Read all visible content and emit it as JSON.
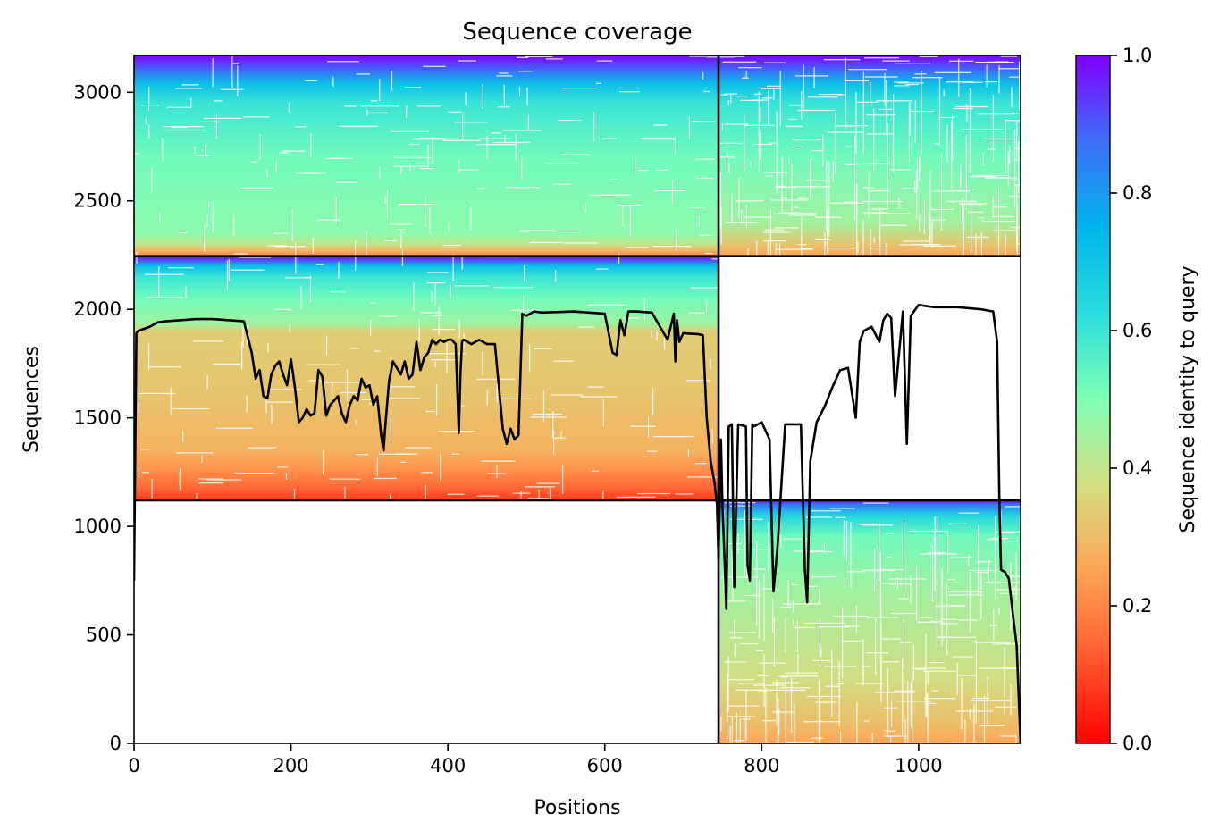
{
  "chart_data": {
    "type": "heatmap",
    "title": "Sequence coverage",
    "xlabel": "Positions",
    "ylabel": "Sequences",
    "xlim": [
      0,
      1130
    ],
    "ylim": [
      0,
      3170
    ],
    "x_ticks": [
      0,
      200,
      400,
      600,
      800,
      1000
    ],
    "y_ticks": [
      0,
      500,
      1000,
      1500,
      2000,
      2500,
      3000
    ],
    "grid": false,
    "colormap": "rainbow_r",
    "colorbar": {
      "label": "Sequence identity to query",
      "range": [
        0.0,
        1.0
      ],
      "ticks": [
        "0.0",
        "0.2",
        "0.4",
        "0.6",
        "0.8",
        "1.0"
      ]
    },
    "block_boundaries": {
      "x": [
        745
      ],
      "y": [
        1120,
        2245
      ]
    },
    "blocks": [
      {
        "name": "block 1 (positions 0-745)",
        "x_range": [
          0,
          745
        ],
        "y_range": [
          2245,
          3170
        ],
        "identity_profile": [
          [
            2245,
            0.18
          ],
          [
            2270,
            0.28
          ],
          [
            2300,
            0.4
          ],
          [
            2350,
            0.48
          ],
          [
            2700,
            0.52
          ],
          [
            2950,
            0.6
          ],
          [
            3040,
            0.72
          ],
          [
            3090,
            0.85
          ],
          [
            3170,
            1.0
          ]
        ]
      },
      {
        "name": "block 1 (positions 745-1130)",
        "x_range": [
          745,
          1130
        ],
        "y_range": [
          2245,
          3170
        ],
        "identity_profile": [
          [
            2245,
            0.25
          ],
          [
            2300,
            0.32
          ],
          [
            2400,
            0.45
          ],
          [
            2700,
            0.52
          ],
          [
            2950,
            0.6
          ],
          [
            3040,
            0.72
          ],
          [
            3090,
            0.85
          ],
          [
            3170,
            1.0
          ]
        ]
      },
      {
        "name": "block 2 (positions 0-745)",
        "x_range": [
          0,
          745
        ],
        "y_range": [
          1120,
          2245
        ],
        "identity_profile": [
          [
            1120,
            0.08
          ],
          [
            1180,
            0.15
          ],
          [
            1260,
            0.22
          ],
          [
            1350,
            0.28
          ],
          [
            1600,
            0.32
          ],
          [
            1900,
            0.34
          ],
          [
            1930,
            0.45
          ],
          [
            2050,
            0.52
          ],
          [
            2150,
            0.6
          ],
          [
            2200,
            0.72
          ],
          [
            2245,
            1.0
          ]
        ]
      },
      {
        "name": "block 3 (positions 745-1130)",
        "x_range": [
          745,
          1130
        ],
        "y_range": [
          0,
          1120
        ],
        "identity_profile": [
          [
            0,
            0.25
          ],
          [
            80,
            0.3
          ],
          [
            300,
            0.38
          ],
          [
            700,
            0.45
          ],
          [
            950,
            0.52
          ],
          [
            1050,
            0.65
          ],
          [
            1100,
            0.85
          ],
          [
            1120,
            1.0
          ]
        ]
      }
    ],
    "coverage_line": {
      "color": "#000000",
      "x": [
        0,
        3,
        5,
        20,
        30,
        40,
        80,
        100,
        120,
        140,
        150,
        155,
        160,
        165,
        170,
        175,
        180,
        185,
        190,
        195,
        200,
        205,
        210,
        215,
        220,
        225,
        230,
        235,
        240,
        245,
        250,
        255,
        260,
        265,
        270,
        275,
        280,
        285,
        290,
        295,
        300,
        305,
        310,
        315,
        318,
        320,
        325,
        330,
        335,
        340,
        345,
        350,
        355,
        360,
        365,
        370,
        375,
        380,
        385,
        390,
        395,
        400,
        405,
        410,
        414,
        416,
        418,
        420,
        430,
        440,
        450,
        460,
        470,
        475,
        480,
        485,
        490,
        495,
        500,
        510,
        520,
        560,
        600,
        610,
        615,
        620,
        625,
        630,
        640,
        660,
        680,
        688,
        690,
        692,
        695,
        700,
        720,
        725,
        730,
        735,
        740,
        743,
        745,
        748,
        750,
        755,
        758,
        762,
        765,
        770,
        780,
        782,
        785,
        788,
        790,
        800,
        810,
        815,
        820,
        830,
        850,
        855,
        858,
        862,
        870,
        880,
        890,
        900,
        910,
        920,
        925,
        930,
        940,
        950,
        955,
        960,
        965,
        970,
        980,
        985,
        990,
        1000,
        1020,
        1050,
        1080,
        1095,
        1100,
        1103,
        1105,
        1110,
        1115,
        1120,
        1125,
        1130
      ],
      "y": [
        750,
        1890,
        1900,
        1920,
        1940,
        1945,
        1955,
        1955,
        1950,
        1945,
        1800,
        1680,
        1720,
        1600,
        1590,
        1700,
        1740,
        1760,
        1700,
        1650,
        1770,
        1640,
        1480,
        1500,
        1540,
        1510,
        1520,
        1720,
        1690,
        1510,
        1560,
        1580,
        1600,
        1520,
        1480,
        1560,
        1600,
        1580,
        1680,
        1640,
        1650,
        1560,
        1600,
        1420,
        1350,
        1450,
        1670,
        1760,
        1730,
        1700,
        1760,
        1680,
        1700,
        1850,
        1720,
        1780,
        1800,
        1860,
        1840,
        1860,
        1850,
        1860,
        1860,
        1840,
        1430,
        1700,
        1850,
        1860,
        1840,
        1860,
        1840,
        1840,
        1450,
        1380,
        1450,
        1400,
        1420,
        1980,
        1970,
        1990,
        1985,
        1990,
        1980,
        1800,
        1790,
        1950,
        1880,
        1990,
        1990,
        1985,
        1860,
        1980,
        1760,
        1950,
        1850,
        1890,
        1885,
        1880,
        1500,
        1300,
        1200,
        1100,
        850,
        1400,
        1100,
        620,
        1460,
        1470,
        720,
        1470,
        1460,
        820,
        750,
        1470,
        1460,
        1480,
        1400,
        700,
        900,
        1470,
        1470,
        800,
        650,
        1300,
        1480,
        1550,
        1640,
        1720,
        1730,
        1500,
        1850,
        1900,
        1920,
        1850,
        1950,
        1980,
        1960,
        1600,
        1990,
        1380,
        1970,
        2020,
        2010,
        2010,
        2000,
        1990,
        1850,
        1100,
        800,
        790,
        760,
        600,
        450,
        0
      ]
    }
  }
}
